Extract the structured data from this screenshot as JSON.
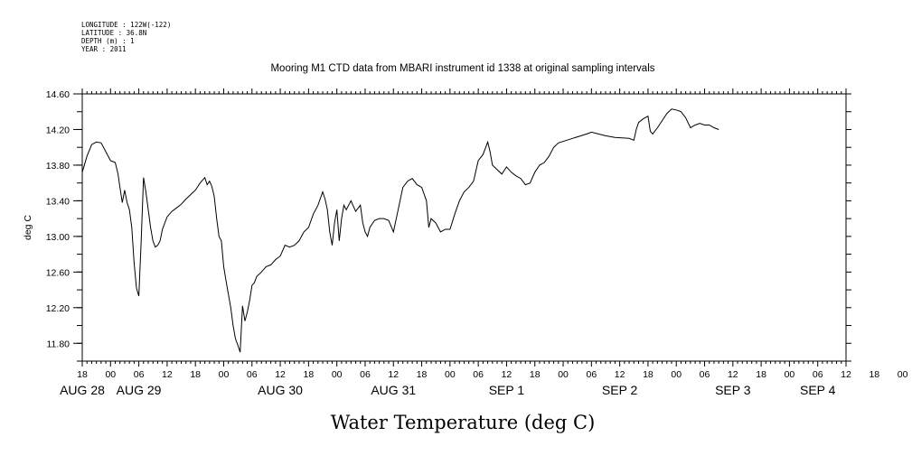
{
  "meta_lines": [
    "LONGITUDE : 122W(-122)",
    "LATITUDE : 36.8N",
    "DEPTH (m) : 1",
    "YEAR : 2011"
  ],
  "chart_data": {
    "type": "line",
    "title": "Mooring M1 CTD data from MBARI instrument id 1338 at original sampling intervals",
    "xlabel": "Water Temperature (deg C)",
    "ylabel": "deg C",
    "ylim": [
      11.6,
      14.6
    ],
    "y_ticks": [
      "14.60",
      "14.20",
      "13.80",
      "13.40",
      "13.00",
      "12.60",
      "12.20",
      "11.80"
    ],
    "x_range_hours": [
      0,
      162
    ],
    "x_hour_ticks": [
      "18",
      "00",
      "06",
      "12",
      "18",
      "00",
      "06",
      "12",
      "18",
      "00",
      "06",
      "12",
      "18",
      "00",
      "06",
      "12",
      "18",
      "00",
      "06",
      "12",
      "18",
      "00",
      "06",
      "12",
      "18",
      "00",
      "06",
      "12",
      "18",
      "00",
      "06"
    ],
    "date_labels": [
      {
        "label": "AUG 28",
        "h": 0
      },
      {
        "label": "AUG 29",
        "h": 12
      },
      {
        "label": "AUG 30",
        "h": 42
      },
      {
        "label": "AUG 31",
        "h": 66
      },
      {
        "label": "SEP  1",
        "h": 90
      },
      {
        "label": "SEP  2",
        "h": 114
      },
      {
        "label": "SEP  3",
        "h": 138
      },
      {
        "label": "SEP  4",
        "h": 156
      }
    ],
    "series": [
      {
        "values": [
          [
            0,
            13.72
          ],
          [
            1,
            13.9
          ],
          [
            2,
            14.03
          ],
          [
            3,
            14.06
          ],
          [
            4,
            14.05
          ],
          [
            5,
            13.95
          ],
          [
            6,
            13.85
          ],
          [
            7,
            13.83
          ],
          [
            7.6,
            13.7
          ],
          [
            8,
            13.55
          ],
          [
            8.5,
            13.38
          ],
          [
            9,
            13.52
          ],
          [
            9.5,
            13.38
          ],
          [
            10,
            13.3
          ],
          [
            10.5,
            13.1
          ],
          [
            11,
            12.7
          ],
          [
            11.5,
            12.42
          ],
          [
            12,
            12.33
          ],
          [
            12.5,
            12.95
          ],
          [
            13,
            13.66
          ],
          [
            13.5,
            13.5
          ],
          [
            14,
            13.3
          ],
          [
            14.5,
            13.1
          ],
          [
            15,
            12.95
          ],
          [
            15.5,
            12.88
          ],
          [
            16,
            12.9
          ],
          [
            16.5,
            12.95
          ],
          [
            17,
            13.08
          ],
          [
            18,
            13.22
          ],
          [
            19,
            13.28
          ],
          [
            20,
            13.32
          ],
          [
            21,
            13.36
          ],
          [
            22,
            13.42
          ],
          [
            23,
            13.47
          ],
          [
            24,
            13.52
          ],
          [
            25,
            13.6
          ],
          [
            26,
            13.66
          ],
          [
            26.5,
            13.58
          ],
          [
            27,
            13.62
          ],
          [
            27.5,
            13.56
          ],
          [
            28,
            13.45
          ],
          [
            28.5,
            13.2
          ],
          [
            29,
            13.0
          ],
          [
            29.5,
            12.95
          ],
          [
            30,
            12.66
          ],
          [
            30.5,
            12.5
          ],
          [
            31,
            12.35
          ],
          [
            31.5,
            12.2
          ],
          [
            32,
            12.0
          ],
          [
            32.5,
            11.85
          ],
          [
            33,
            11.78
          ],
          [
            33.5,
            11.7
          ],
          [
            34,
            12.22
          ],
          [
            34.5,
            12.05
          ],
          [
            35,
            12.15
          ],
          [
            35.5,
            12.28
          ],
          [
            36,
            12.45
          ],
          [
            36.5,
            12.48
          ],
          [
            37,
            12.55
          ],
          [
            38,
            12.6
          ],
          [
            39,
            12.66
          ],
          [
            40,
            12.68
          ],
          [
            41,
            12.74
          ],
          [
            42,
            12.78
          ],
          [
            43,
            12.9
          ],
          [
            44,
            12.88
          ],
          [
            45,
            12.9
          ],
          [
            46,
            12.95
          ],
          [
            47,
            13.05
          ],
          [
            48,
            13.1
          ],
          [
            49,
            13.25
          ],
          [
            50,
            13.35
          ],
          [
            51,
            13.5
          ],
          [
            51.5,
            13.42
          ],
          [
            52,
            13.3
          ],
          [
            52.5,
            13.05
          ],
          [
            53,
            12.9
          ],
          [
            53.5,
            13.15
          ],
          [
            54,
            13.3
          ],
          [
            54.5,
            12.95
          ],
          [
            55,
            13.2
          ],
          [
            55.5,
            13.35
          ],
          [
            56,
            13.3
          ],
          [
            57,
            13.4
          ],
          [
            58,
            13.28
          ],
          [
            59,
            13.35
          ],
          [
            59.5,
            13.15
          ],
          [
            60,
            13.05
          ],
          [
            60.5,
            13.0
          ],
          [
            61,
            13.1
          ],
          [
            62,
            13.18
          ],
          [
            63,
            13.2
          ],
          [
            64,
            13.2
          ],
          [
            65,
            13.18
          ],
          [
            66,
            13.05
          ],
          [
            67,
            13.3
          ],
          [
            68,
            13.55
          ],
          [
            69,
            13.62
          ],
          [
            70,
            13.65
          ],
          [
            71,
            13.58
          ],
          [
            72,
            13.55
          ],
          [
            73,
            13.4
          ],
          [
            73.5,
            13.1
          ],
          [
            74,
            13.2
          ],
          [
            75,
            13.15
          ],
          [
            76,
            13.05
          ],
          [
            77,
            13.08
          ],
          [
            78,
            13.08
          ],
          [
            79,
            13.25
          ],
          [
            80,
            13.4
          ],
          [
            81,
            13.5
          ],
          [
            82,
            13.55
          ],
          [
            83,
            13.62
          ],
          [
            84,
            13.85
          ],
          [
            85,
            13.92
          ],
          [
            86,
            14.06
          ],
          [
            86.5,
            13.95
          ],
          [
            87,
            13.8
          ],
          [
            88,
            13.75
          ],
          [
            89,
            13.7
          ],
          [
            90,
            13.78
          ],
          [
            91,
            13.72
          ],
          [
            92,
            13.68
          ],
          [
            93,
            13.65
          ],
          [
            94,
            13.58
          ],
          [
            95,
            13.6
          ],
          [
            96,
            13.72
          ],
          [
            97,
            13.8
          ],
          [
            98,
            13.83
          ],
          [
            99,
            13.9
          ],
          [
            100,
            14.0
          ],
          [
            101,
            14.05
          ],
          [
            104,
            14.1
          ],
          [
            107,
            14.15
          ],
          [
            108,
            14.17
          ],
          [
            111,
            14.13
          ],
          [
            113,
            14.11
          ],
          [
            116,
            14.1
          ],
          [
            117,
            14.08
          ],
          [
            117.5,
            14.2
          ],
          [
            118,
            14.28
          ],
          [
            119,
            14.32
          ],
          [
            120,
            14.35
          ],
          [
            120.5,
            14.18
          ],
          [
            121,
            14.15
          ],
          [
            122,
            14.22
          ],
          [
            123,
            14.3
          ],
          [
            124,
            14.38
          ],
          [
            125,
            14.43
          ],
          [
            126,
            14.42
          ],
          [
            127,
            14.4
          ],
          [
            128,
            14.33
          ],
          [
            129,
            14.22
          ],
          [
            130,
            14.25
          ],
          [
            131,
            14.27
          ],
          [
            132,
            14.25
          ],
          [
            133,
            14.25
          ],
          [
            134,
            14.22
          ],
          [
            135,
            14.2
          ]
        ]
      }
    ]
  }
}
